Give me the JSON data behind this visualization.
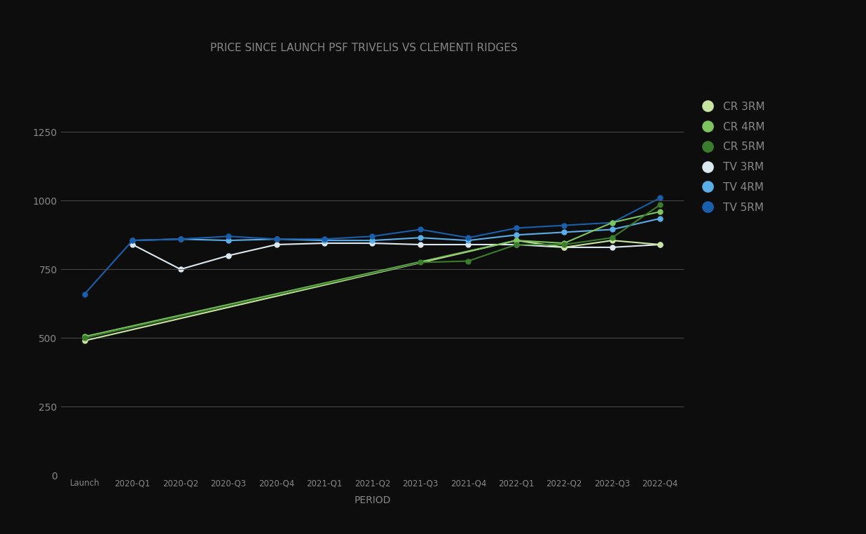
{
  "x_labels": [
    "Launch",
    "2020-Q1",
    "2020-Q2",
    "2020-Q3",
    "2020-Q4",
    "2021-Q1",
    "2021-Q2",
    "2021-Q3",
    "2021-Q4",
    "2022-Q1",
    "2022-Q2",
    "2022-Q3",
    "2022-Q4"
  ],
  "series": {
    "CR 3RM": {
      "color": "#c8e6a0",
      "values": [
        490,
        null,
        null,
        null,
        null,
        null,
        null,
        null,
        null,
        855,
        830,
        855,
        840
      ],
      "zorder": 3
    },
    "CR 4RM": {
      "color": "#7dc55e",
      "values": [
        505,
        null,
        null,
        null,
        null,
        null,
        null,
        null,
        null,
        855,
        845,
        920,
        960
      ],
      "zorder": 3
    },
    "CR 5RM": {
      "color": "#3a7d2c",
      "values": [
        500,
        null,
        null,
        null,
        null,
        null,
        null,
        775,
        780,
        840,
        840,
        865,
        985
      ],
      "zorder": 3
    },
    "TV 3RM": {
      "color": "#dce8f0",
      "values": [
        null,
        840,
        750,
        800,
        840,
        845,
        845,
        840,
        840,
        840,
        830,
        830,
        840
      ],
      "zorder": 2
    },
    "TV 4RM": {
      "color": "#5baee8",
      "values": [
        null,
        855,
        860,
        855,
        860,
        855,
        855,
        865,
        855,
        875,
        885,
        895,
        935
      ],
      "zorder": 2
    },
    "TV 5RM": {
      "color": "#1a5fac",
      "values": [
        660,
        855,
        860,
        870,
        860,
        860,
        870,
        895,
        865,
        900,
        910,
        920,
        1010
      ],
      "zorder": 2
    }
  },
  "series_order": [
    "CR 3RM",
    "CR 4RM",
    "CR 5RM",
    "TV 3RM",
    "TV 4RM",
    "TV 5RM"
  ],
  "title": "PRICE SINCE LAUNCH PSF TRIVELIS VS CLEMENTI RIDGES",
  "xlabel": "PERIOD",
  "ylim": [
    0,
    1400
  ],
  "yticks": [
    0,
    250,
    500,
    750,
    1000,
    1250
  ],
  "background_color": "#0d0d0d",
  "plot_bg_color": "#0d0d0d",
  "grid_color": "#555555",
  "text_color": "#888888",
  "title_color": "#888888",
  "legend_text_color": "#888888",
  "figsize": [
    12.36,
    7.62
  ],
  "dpi": 100,
  "linewidth": 1.5,
  "markersize": 5
}
